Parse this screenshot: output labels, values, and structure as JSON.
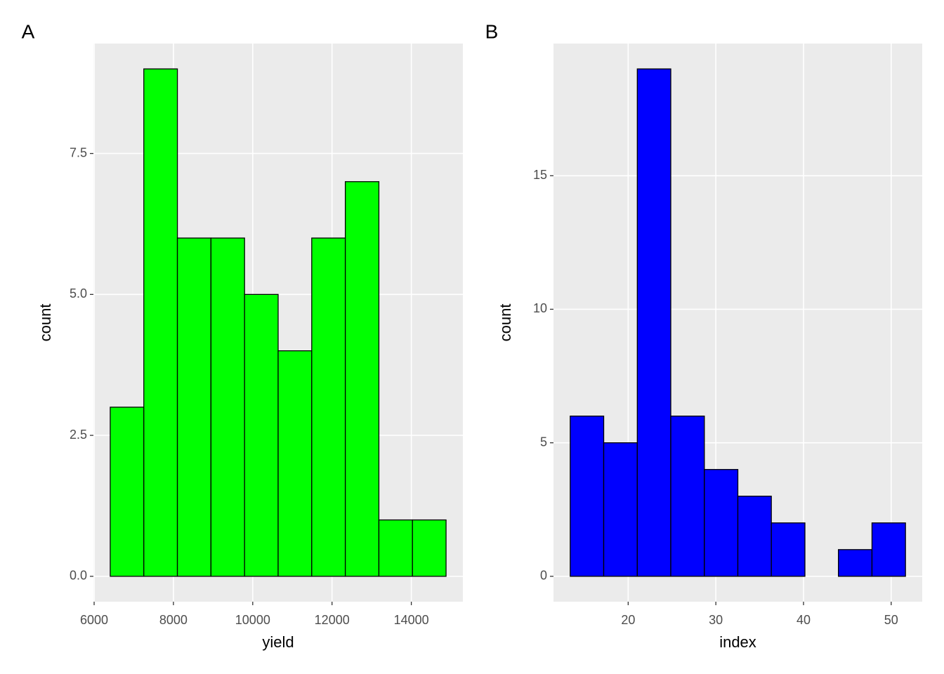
{
  "chart_data": [
    {
      "type": "histogram",
      "title": "A",
      "xlabel": "yield",
      "ylabel": "count",
      "color": "#00ff00",
      "bins": [
        6406,
        7253,
        8100,
        8947,
        9794,
        10641,
        11488,
        12335,
        13182,
        14029,
        14876
      ],
      "values": [
        3,
        9,
        6,
        6,
        5,
        4,
        6,
        7,
        1,
        1
      ],
      "xlim": [
        5982,
        15300
      ],
      "xticks": [
        6000,
        8000,
        10000,
        12000,
        14000
      ],
      "ylim": [
        -0.45,
        9.45
      ],
      "yticks": [
        {
          "value": 0,
          "label": "0.0"
        },
        2.5,
        {
          "value": 5,
          "label": "5.0"
        },
        7.5
      ],
      "grid": true
    },
    {
      "type": "histogram",
      "title": "B",
      "xlabel": "index",
      "ylabel": "count",
      "color": "#0000ff",
      "bins": [
        13.39,
        17.21,
        21.04,
        24.86,
        28.69,
        32.51,
        36.33,
        40.16,
        43.98,
        47.81,
        51.63
      ],
      "values": [
        6,
        5,
        19,
        6,
        4,
        3,
        2,
        0,
        1,
        2
      ],
      "xlim": [
        11.48,
        53.54
      ],
      "xticks": [
        20,
        30,
        40,
        50
      ],
      "ylim": [
        -0.95,
        19.95
      ],
      "yticks": [
        0,
        5,
        10,
        15
      ],
      "grid": true
    }
  ]
}
